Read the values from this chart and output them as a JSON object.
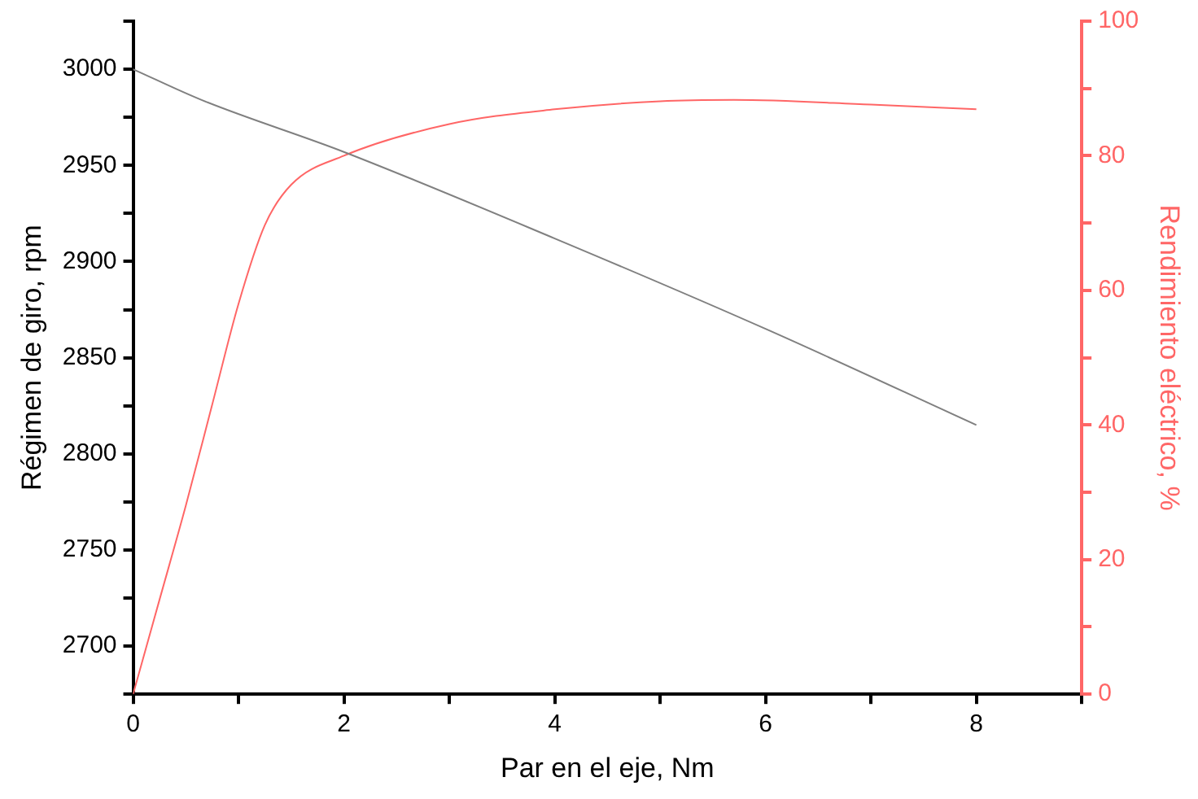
{
  "chart_data": {
    "type": "line",
    "xlabel": "Par en el eje, Nm",
    "ylabel": "Régimen de giro, rpm",
    "y2label": "Rendimiento eléctrico, %",
    "xlim": [
      0,
      9
    ],
    "xticks": [
      0,
      {
        "value": 1,
        "label": null
      },
      2,
      {
        "value": 3,
        "label": null
      },
      4,
      {
        "value": 5,
        "label": null
      },
      6,
      {
        "value": 7,
        "label": null
      },
      8,
      {
        "value": 9,
        "label": null
      }
    ],
    "ylim": [
      2675,
      3025
    ],
    "yticks": [
      {
        "value": 2675,
        "label": null
      },
      2700,
      {
        "value": 2725,
        "label": null
      },
      2750,
      {
        "value": 2775,
        "label": null
      },
      2800,
      {
        "value": 2825,
        "label": null
      },
      2850,
      {
        "value": 2875,
        "label": null
      },
      2900,
      {
        "value": 2925,
        "label": null
      },
      2950,
      {
        "value": 2975,
        "label": null
      },
      3000,
      {
        "value": 3025,
        "label": null
      }
    ],
    "y2lim": [
      0,
      100
    ],
    "y2ticks": [
      0,
      {
        "value": 10,
        "label": null
      },
      20,
      {
        "value": 30,
        "label": null
      },
      40,
      {
        "value": 50,
        "label": null
      },
      60,
      {
        "value": 70,
        "label": null
      },
      80,
      {
        "value": 90,
        "label": null
      },
      100
    ],
    "grid": false,
    "legend": false,
    "marker": "none",
    "line_style": "solid",
    "series": [
      {
        "color": "#808080",
        "x": [
          0,
          0.65,
          2,
          4,
          6,
          8
        ],
        "values": [
          3000,
          2984,
          2957,
          2912,
          2865,
          2815
        ]
      },
      {
        "color": "#ff6666",
        "axis": "y2",
        "x": [
          0,
          0.25,
          0.5,
          0.75,
          1,
          1.25,
          1.5,
          2,
          3,
          4,
          5,
          5.7,
          7,
          8
        ],
        "values": [
          0,
          14,
          28,
          43,
          58,
          69.7,
          75.7,
          80,
          84.7,
          86.9,
          88.1,
          88.3,
          87.6,
          86.9
        ]
      }
    ]
  }
}
